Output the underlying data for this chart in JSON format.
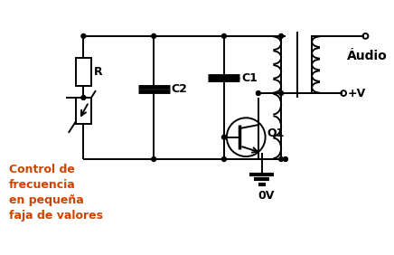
{
  "bg_color": "#ffffff",
  "line_color": "#000000",
  "text_color_orange": "#cc4400",
  "label_R": "R",
  "label_C2": "C2",
  "label_C1": "C1",
  "label_Audio": "Áudio",
  "label_plusV": "+V",
  "label_Q1": "Q1",
  "label_0V": "0V",
  "label_control": "Control de\nfrecuencia\nen pequeña\nfaja de valores",
  "fig_width": 4.36,
  "fig_height": 2.82,
  "dpi": 100
}
